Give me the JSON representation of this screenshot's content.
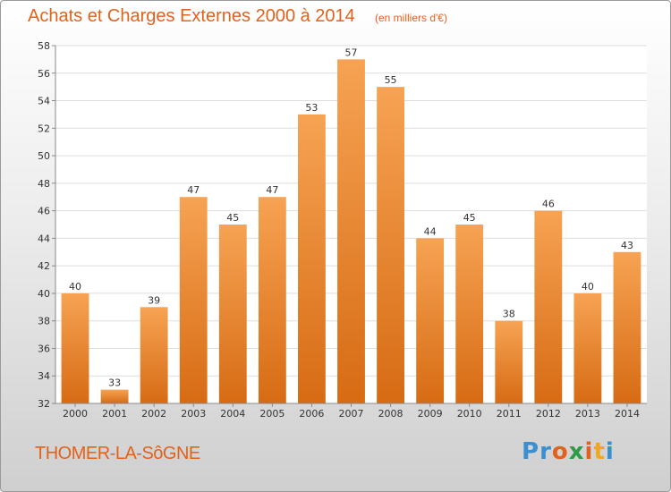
{
  "header": {
    "title": "Achats et Charges Externes 2000 à 2014",
    "unit": "(en milliers d'€)"
  },
  "footer": {
    "commune": "THOMER-LA-SôGNE",
    "logo_letters": [
      "P",
      "r",
      "o",
      "x",
      "i",
      "t",
      "i"
    ],
    "logo_colors": [
      "#3a8fd0",
      "#3a8fd0",
      "#e2621b",
      "#2c9d45",
      "#e2621b",
      "#f0a81c",
      "#3a8fd0"
    ]
  },
  "colors": {
    "bar_light": "#f6a353",
    "bar_dark": "#d76b14",
    "accent": "#e2621b"
  },
  "chart_data": {
    "type": "bar",
    "title": "Achats et Charges Externes 2000 à 2014",
    "subtitle": "(en milliers d'€)",
    "categories": [
      "2000",
      "2001",
      "2002",
      "2003",
      "2004",
      "2005",
      "2006",
      "2007",
      "2008",
      "2009",
      "2010",
      "2011",
      "2012",
      "2013",
      "2014"
    ],
    "values": [
      40,
      33,
      39,
      47,
      45,
      47,
      53,
      57,
      55,
      44,
      45,
      38,
      46,
      40,
      43
    ],
    "ylim": [
      32,
      58
    ],
    "yticks": [
      32,
      34,
      36,
      38,
      40,
      42,
      44,
      46,
      48,
      50,
      52,
      54,
      56,
      58
    ],
    "grid": true,
    "data_labels": true
  }
}
